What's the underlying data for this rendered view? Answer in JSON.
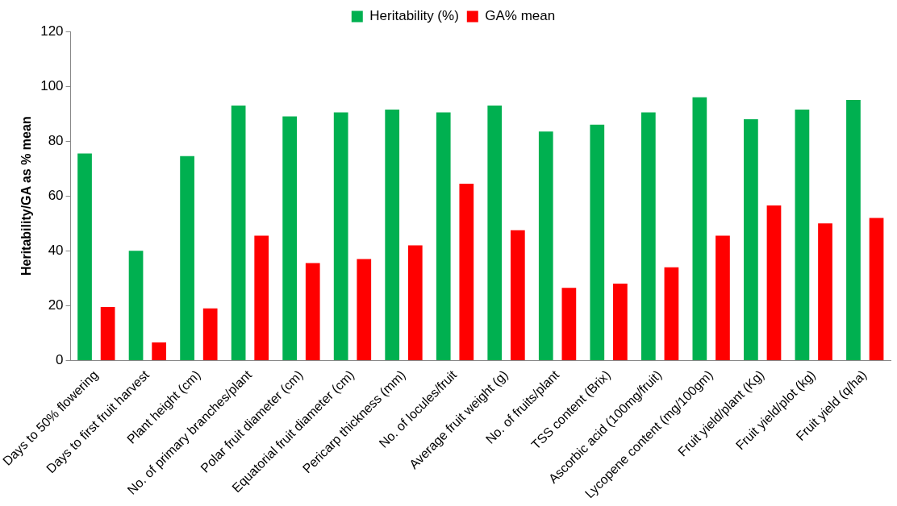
{
  "chart_data": {
    "type": "bar",
    "ylabel": "Heritability/GA as % mean",
    "categories": [
      "Days to 50% flowering",
      "Days to first fruit harvest",
      "Plant height (cm)",
      "No. of primary branches/plant",
      "Polar fruit diameter (cm)",
      "Equatorial fruit diameter (cm)",
      "Pericarp thickness (mm)",
      "No. of locules/fruit",
      "Average fruit weight (g)",
      "No. of fruits/plant",
      "TSS content (Brix)",
      "Ascorbic acid (100mg/fruit)",
      "Lycopene content (mg/100gm)",
      "Fruit yield/plant (Kg)",
      "Fruit yield/plot (kg)",
      "Fruit yield (q/ha)"
    ],
    "series": [
      {
        "name": "Heritability (%)",
        "color": "#00b050",
        "values": [
          75.5,
          40,
          74.5,
          93,
          89,
          90.5,
          91.5,
          90.5,
          93,
          83.5,
          86,
          90.5,
          96,
          88,
          91.5,
          95
        ]
      },
      {
        "name": "GA% mean",
        "color": "#ff0000",
        "values": [
          19.5,
          6.6,
          19,
          45.5,
          35.5,
          37,
          42,
          64.5,
          47.5,
          26.5,
          28,
          34,
          45.5,
          56.5,
          50,
          52
        ]
      }
    ],
    "ylim": [
      0,
      120
    ],
    "yticks": [
      0,
      20,
      40,
      60,
      80,
      100,
      120
    ],
    "grid": false,
    "legend": "top"
  }
}
